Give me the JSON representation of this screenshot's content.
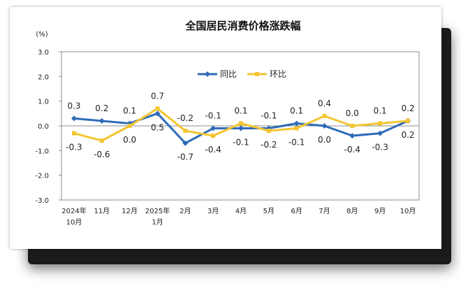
{
  "chart_data": {
    "type": "line",
    "title": "全国居民消费价格涨跌幅",
    "unit": "(%)",
    "ylim": [
      -3.0,
      3.0
    ],
    "yticks": [
      "3.0",
      "2.0",
      "1.0",
      "0.0",
      "-1.0",
      "-2.0",
      "-3.0"
    ],
    "categories": [
      [
        "2024年",
        "10月"
      ],
      [
        "11月"
      ],
      [
        "12月"
      ],
      [
        "2025年",
        "1月"
      ],
      [
        "2月"
      ],
      [
        "3月"
      ],
      [
        "4月"
      ],
      [
        "5月"
      ],
      [
        "6月"
      ],
      [
        "7月"
      ],
      [
        "8月"
      ],
      [
        "9月"
      ],
      [
        "10月"
      ]
    ],
    "series": [
      {
        "name": "同比",
        "color": "#2e6bb8",
        "values": [
          0.3,
          0.2,
          0.1,
          0.5,
          -0.7,
          -0.1,
          -0.1,
          -0.1,
          0.1,
          0.0,
          -0.4,
          -0.3,
          0.2
        ],
        "labels": [
          "0.3",
          "0.2",
          "0.1",
          "0.5",
          "-0.7",
          "-0.1",
          "-0.1",
          "-0.1",
          "0.1",
          "0.0",
          "-0.4",
          "-0.3",
          "0.2"
        ]
      },
      {
        "name": "环比",
        "color": "#f2c531",
        "values": [
          -0.3,
          -0.6,
          0.0,
          0.7,
          -0.2,
          -0.4,
          0.1,
          -0.2,
          -0.1,
          0.4,
          0.0,
          0.1,
          0.2
        ],
        "labels": [
          "-0.3",
          "-0.6",
          "0.0",
          "0.7",
          "-0.2",
          "-0.4",
          "0.1",
          "-0.2",
          "-0.1",
          "0.4",
          "0.0",
          "0.1",
          "0.2"
        ]
      }
    ],
    "legend": "top-center",
    "grid": false
  }
}
